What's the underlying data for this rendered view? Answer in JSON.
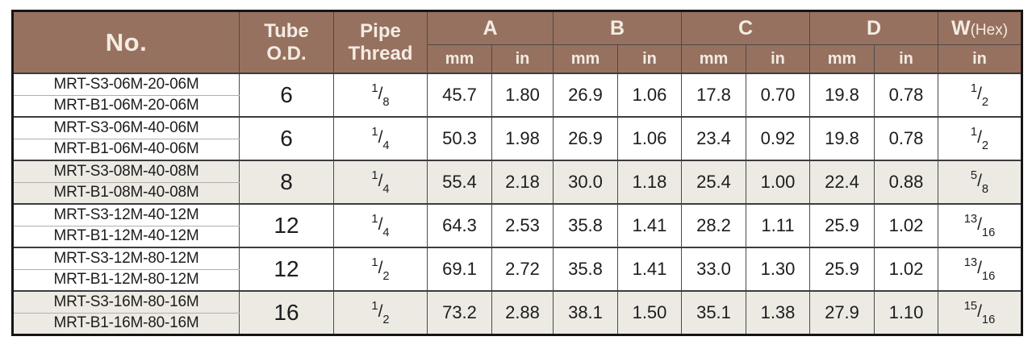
{
  "colors": {
    "header_bg": "#97715F",
    "header_text": "#F2ECE3",
    "shaded_bg": "#EDEAE4",
    "grid_dark": "#3D3D3D",
    "grid_light": "#B3AFA8"
  },
  "table": {
    "header": {
      "no": "No.",
      "tube_od": "Tube\nO.D.",
      "pipe_thread": "Pipe\nThread",
      "dims": [
        "A",
        "B",
        "C",
        "D"
      ],
      "w": "W",
      "w_suffix": "(Hex)",
      "units": [
        "mm",
        "in",
        "mm",
        "in",
        "mm",
        "in",
        "mm",
        "in",
        "in"
      ]
    },
    "groups": [
      {
        "no": [
          "MRT-S3-06M-20-06M",
          "MRT-B1-06M-20-06M"
        ],
        "tube_od": "6",
        "pipe_thread": {
          "num": "1",
          "den": "8"
        },
        "values": [
          "45.7",
          "1.80",
          "26.9",
          "1.06",
          "17.8",
          "0.70",
          "19.8",
          "0.78"
        ],
        "w_hex": {
          "num": "1",
          "den": "2"
        },
        "shaded": false
      },
      {
        "no": [
          "MRT-S3-06M-40-06M",
          "MRT-B1-06M-40-06M"
        ],
        "tube_od": "6",
        "pipe_thread": {
          "num": "1",
          "den": "4"
        },
        "values": [
          "50.3",
          "1.98",
          "26.9",
          "1.06",
          "23.4",
          "0.92",
          "19.8",
          "0.78"
        ],
        "w_hex": {
          "num": "1",
          "den": "2"
        },
        "shaded": false
      },
      {
        "no": [
          "MRT-S3-08M-40-08M",
          "MRT-B1-08M-40-08M"
        ],
        "tube_od": "8",
        "pipe_thread": {
          "num": "1",
          "den": "4"
        },
        "values": [
          "55.4",
          "2.18",
          "30.0",
          "1.18",
          "25.4",
          "1.00",
          "22.4",
          "0.88"
        ],
        "w_hex": {
          "num": "5",
          "den": "8"
        },
        "shaded": true
      },
      {
        "no": [
          "MRT-S3-12M-40-12M",
          "MRT-B1-12M-40-12M"
        ],
        "tube_od": "12",
        "pipe_thread": {
          "num": "1",
          "den": "4"
        },
        "values": [
          "64.3",
          "2.53",
          "35.8",
          "1.41",
          "28.2",
          "1.11",
          "25.9",
          "1.02"
        ],
        "w_hex": {
          "num": "13",
          "den": "16"
        },
        "shaded": false
      },
      {
        "no": [
          "MRT-S3-12M-80-12M",
          "MRT-B1-12M-80-12M"
        ],
        "tube_od": "12",
        "pipe_thread": {
          "num": "1",
          "den": "2"
        },
        "values": [
          "69.1",
          "2.72",
          "35.8",
          "1.41",
          "33.0",
          "1.30",
          "25.9",
          "1.02"
        ],
        "w_hex": {
          "num": "13",
          "den": "16"
        },
        "shaded": false
      },
      {
        "no": [
          "MRT-S3-16M-80-16M",
          "MRT-B1-16M-80-16M"
        ],
        "tube_od": "16",
        "pipe_thread": {
          "num": "1",
          "den": "2"
        },
        "values": [
          "73.2",
          "2.88",
          "38.1",
          "1.50",
          "35.1",
          "1.38",
          "27.9",
          "1.10"
        ],
        "w_hex": {
          "num": "15",
          "den": "16"
        },
        "shaded": true
      }
    ]
  }
}
